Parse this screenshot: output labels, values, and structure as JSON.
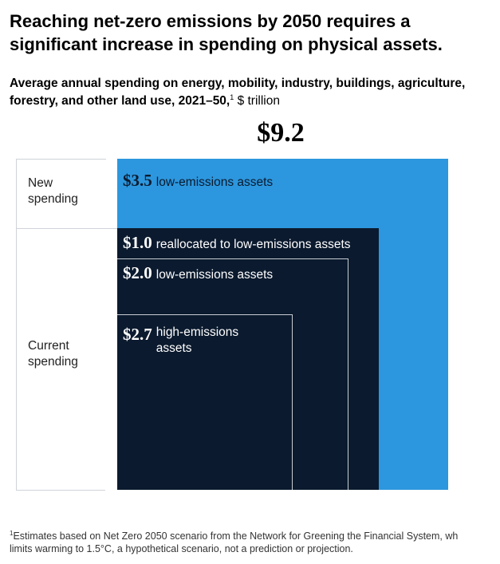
{
  "title": "Reaching net-zero emissions by 2050 requires a significant increase in spending on physical assets.",
  "subtitle": {
    "text": "Average annual spending on energy, mobility, industry, buildings, agriculture, forestry, and other land use, 2021–50,",
    "footnote_marker": "1",
    "unit": "$ trillion"
  },
  "chart_data": {
    "type": "nested-area",
    "total_label": "$9.2",
    "total": 9.2,
    "groups": [
      {
        "label": "New spending",
        "segments": [
          "new_low"
        ]
      },
      {
        "label": "Current spending",
        "segments": [
          "reallocated",
          "low",
          "high"
        ]
      }
    ],
    "segments": [
      {
        "id": "new_low",
        "value": 3.5,
        "value_label": "$3.5",
        "label": "low-emissions assets",
        "color": "#2c97de"
      },
      {
        "id": "reallocated",
        "value": 1.0,
        "value_label": "$1.0",
        "label": "reallocated to low-emissions assets",
        "color": "#0b1a2e"
      },
      {
        "id": "low",
        "value": 2.0,
        "value_label": "$2.0",
        "label": "low-emissions assets",
        "color": "#0b1a2e"
      },
      {
        "id": "high",
        "value": 2.7,
        "value_label": "$2.7",
        "label": "high-emissions assets",
        "color": "#0b1a2e"
      }
    ]
  },
  "footnote": {
    "marker": "1",
    "line1": "Estimates based on Net Zero 2050 scenario from the Network for Greening the Financial System, wh",
    "line2": "limits warming to 1.5°C, a hypothetical scenario, not a prediction or projection."
  }
}
